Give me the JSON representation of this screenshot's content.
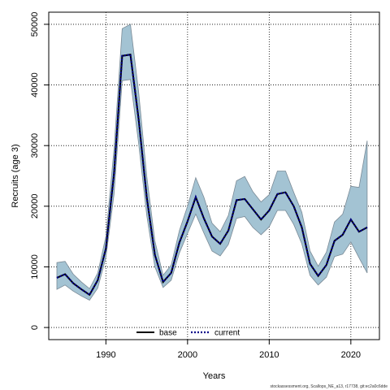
{
  "chart_data": {
    "type": "line",
    "xlabel": "Years",
    "ylabel": "Recruits (age 3)",
    "xlim": [
      1983,
      2023.5
    ],
    "ylim": [
      -2000,
      52000
    ],
    "x_ticks": [
      1990,
      2000,
      2010,
      2020
    ],
    "y_ticks": [
      0,
      10000,
      20000,
      30000,
      40000,
      50000
    ],
    "grid": true,
    "legend_position": "bottom",
    "colors": {
      "band": "#a3c3d3",
      "band_edge": "#7a8a96",
      "base": "#000000",
      "current": "#00008b"
    },
    "x": [
      1984,
      1985,
      1986,
      1987,
      1988,
      1989,
      1990,
      1991,
      1992,
      1993,
      1994,
      1995,
      1996,
      1997,
      1998,
      1999,
      2000,
      2001,
      2002,
      2003,
      2004,
      2005,
      2006,
      2007,
      2008,
      2009,
      2010,
      2011,
      2012,
      2013,
      2014,
      2015,
      2016,
      2017,
      2018,
      2019,
      2020,
      2021,
      2022
    ],
    "series": [
      {
        "name": "base",
        "style": "solid",
        "values": [
          8200,
          8800,
          7300,
          6300,
          5400,
          7800,
          13000,
          25500,
          44800,
          45000,
          34500,
          21500,
          12000,
          7500,
          9000,
          14000,
          17500,
          21500,
          18000,
          15000,
          13800,
          16000,
          21000,
          21200,
          19500,
          17800,
          19300,
          22000,
          22300,
          20000,
          16500,
          10500,
          8500,
          10300,
          14300,
          15300,
          17800,
          15800,
          16500
        ]
      },
      {
        "name": "current",
        "style": "dotted",
        "values": [
          8200,
          8800,
          7300,
          6300,
          5400,
          7800,
          13000,
          25500,
          44800,
          45000,
          34500,
          21500,
          12000,
          7500,
          9000,
          14000,
          17500,
          21500,
          18000,
          15000,
          13800,
          16000,
          21000,
          21200,
          19500,
          17800,
          19300,
          22000,
          22300,
          20000,
          16500,
          10500,
          8500,
          10300,
          14300,
          15300,
          17800,
          15800,
          16500
        ]
      }
    ],
    "band": {
      "lower": [
        6300,
        7000,
        6000,
        5200,
        4500,
        6500,
        11500,
        22000,
        40700,
        40900,
        30500,
        18500,
        10000,
        6600,
        7800,
        12300,
        15500,
        18700,
        15600,
        12600,
        11800,
        13700,
        18000,
        18300,
        16500,
        15300,
        16600,
        19300,
        19300,
        17000,
        13800,
        8600,
        7000,
        8300,
        11700,
        12100,
        14100,
        11500,
        9000
      ],
      "upper": [
        10700,
        10900,
        8800,
        7500,
        6400,
        9000,
        15000,
        29500,
        49300,
        50000,
        39000,
        25000,
        14300,
        8600,
        10300,
        16000,
        20000,
        24700,
        21500,
        17200,
        15800,
        18500,
        24200,
        24900,
        22400,
        20700,
        21900,
        25800,
        25800,
        22300,
        19000,
        12600,
        10100,
        12400,
        17400,
        18700,
        23300,
        23100,
        30800
      ]
    }
  },
  "legend": {
    "base_label": "base",
    "current_label": "current"
  },
  "footer": {
    "text": "stockassessment.org, Scallops_NE_a13, r17738, git:ec2a0c6dde"
  }
}
